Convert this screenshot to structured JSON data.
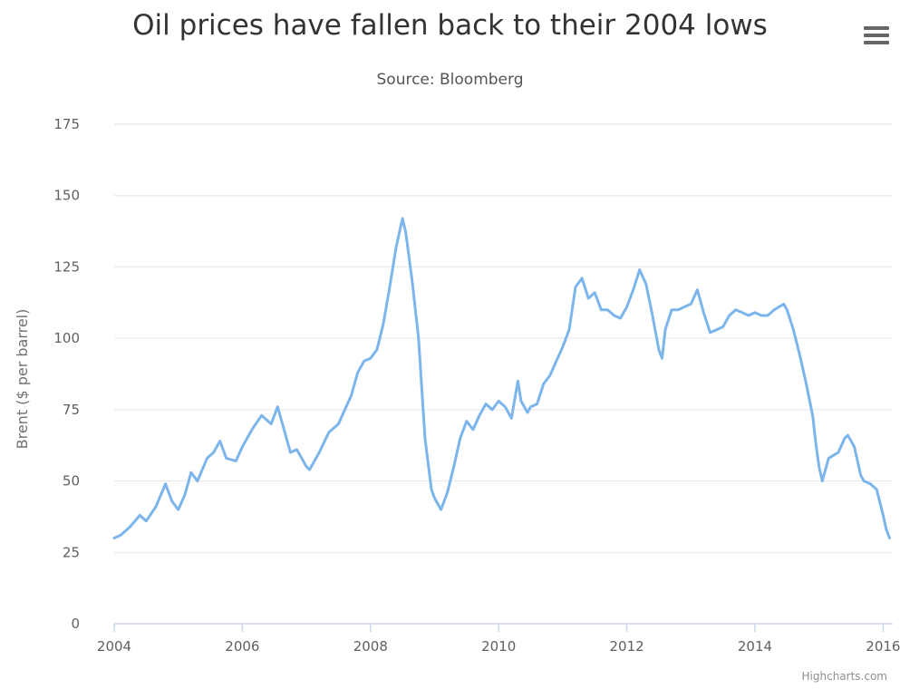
{
  "header": {
    "title": "Oil prices have fallen back to their 2004 lows",
    "subtitle": "Source: Bloomberg",
    "menu_icon": "hamburger-menu-icon"
  },
  "footer": {
    "credits": "Highcharts.com"
  },
  "colors": {
    "series": "#7cb5ec",
    "grid": "#e6e6e6",
    "axis_line": "#ccd6eb",
    "title": "#333333",
    "text": "#606060"
  },
  "chart_data": {
    "type": "line",
    "title": "Oil prices have fallen back to their 2004 lows",
    "subtitle": "Source: Bloomberg",
    "xlabel": "",
    "ylabel": "Brent ($ per barrel)",
    "xlim": [
      2004,
      2016.15
    ],
    "ylim": [
      0,
      175
    ],
    "x_ticks": [
      "2004",
      "2006",
      "2008",
      "2010",
      "2012",
      "2014",
      "2016"
    ],
    "y_ticks": [
      "0",
      "25",
      "50",
      "75",
      "100",
      "125",
      "150",
      "175"
    ],
    "grid": true,
    "legend": "none",
    "series": [
      {
        "x": [
          2004.0,
          2004.1,
          2004.25,
          2004.4,
          2004.5,
          2004.65,
          2004.8,
          2004.9,
          2005.0,
          2005.1,
          2005.2,
          2005.3,
          2005.45,
          2005.55,
          2005.65,
          2005.75,
          2005.9,
          2006.0,
          2006.15,
          2006.3,
          2006.45,
          2006.55,
          2006.65,
          2006.75,
          2006.85,
          2007.0,
          2007.05,
          2007.2,
          2007.35,
          2007.5,
          2007.6,
          2007.7,
          2007.8,
          2007.9,
          2008.0,
          2008.1,
          2008.2,
          2008.3,
          2008.4,
          2008.5,
          2008.55,
          2008.65,
          2008.75,
          2008.85,
          2008.95,
          2009.0,
          2009.1,
          2009.2,
          2009.3,
          2009.4,
          2009.5,
          2009.6,
          2009.7,
          2009.8,
          2009.9,
          2010.0,
          2010.1,
          2010.2,
          2010.3,
          2010.35,
          2010.45,
          2010.5,
          2010.6,
          2010.7,
          2010.8,
          2010.9,
          2011.0,
          2011.1,
          2011.2,
          2011.3,
          2011.4,
          2011.5,
          2011.6,
          2011.7,
          2011.8,
          2011.9,
          2012.0,
          2012.1,
          2012.2,
          2012.3,
          2012.4,
          2012.5,
          2012.55,
          2012.6,
          2012.7,
          2012.8,
          2012.9,
          2013.0,
          2013.1,
          2013.2,
          2013.3,
          2013.4,
          2013.5,
          2013.6,
          2013.7,
          2013.8,
          2013.9,
          2014.0,
          2014.1,
          2014.2,
          2014.3,
          2014.45,
          2014.5,
          2014.6,
          2014.7,
          2014.8,
          2014.9,
          2014.95,
          2015.0,
          2015.05,
          2015.15,
          2015.3,
          2015.4,
          2015.45,
          2015.55,
          2015.65,
          2015.7,
          2015.8,
          2015.9,
          2016.0,
          2016.05,
          2016.1
        ],
        "y": [
          30,
          31,
          34,
          38,
          36,
          41,
          49,
          43,
          40,
          45,
          53,
          50,
          58,
          60,
          64,
          58,
          57,
          62,
          68,
          73,
          70,
          76,
          68,
          60,
          61,
          55,
          54,
          60,
          67,
          70,
          75,
          80,
          88,
          92,
          93,
          96,
          105,
          118,
          132,
          142,
          137,
          120,
          100,
          65,
          47,
          44,
          40,
          46,
          55,
          65,
          71,
          68,
          73,
          77,
          75,
          78,
          76,
          72,
          85,
          78,
          74,
          76,
          77,
          84,
          87,
          92,
          97,
          103,
          118,
          121,
          114,
          116,
          110,
          110,
          108,
          107,
          111,
          117,
          124,
          119,
          108,
          96,
          93,
          103,
          110,
          110,
          111,
          112,
          117,
          109,
          102,
          103,
          104,
          108,
          110,
          109,
          108,
          109,
          108,
          108,
          110,
          112,
          110,
          103,
          94,
          84,
          73,
          63,
          55,
          50,
          58,
          60,
          65,
          66,
          62,
          52,
          50,
          49,
          47,
          38,
          33,
          30
        ]
      }
    ]
  }
}
